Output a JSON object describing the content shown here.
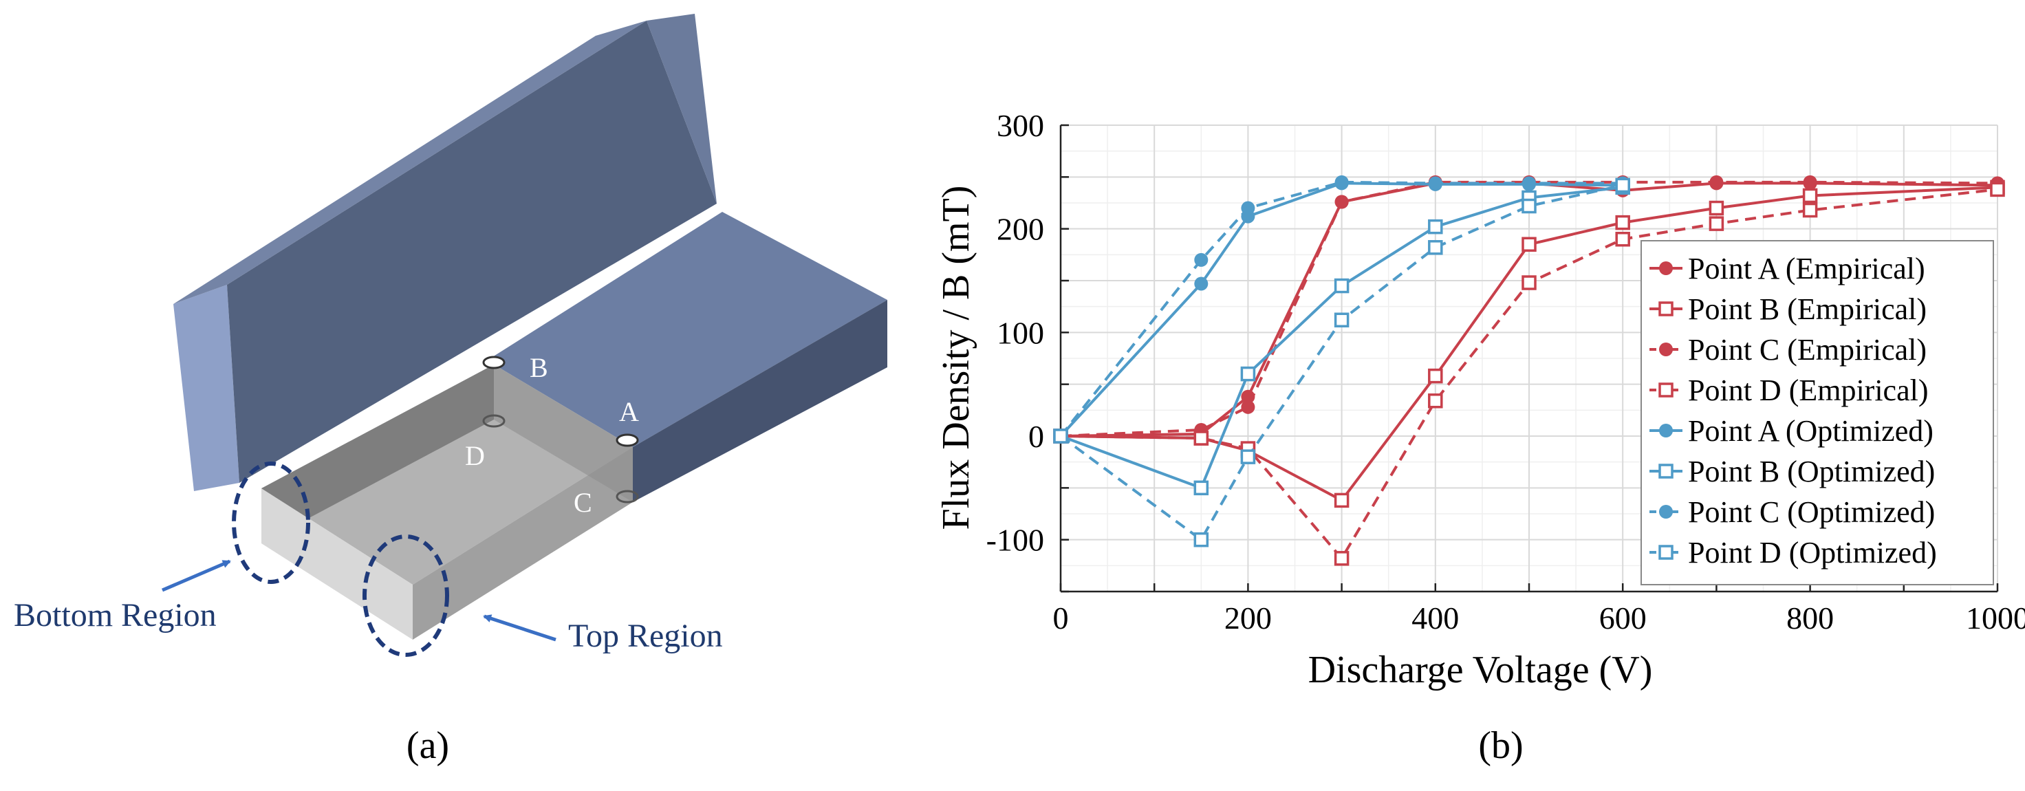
{
  "panel_a": {
    "caption": "(a)",
    "point_labels": {
      "a": "A",
      "b": "B",
      "c": "C",
      "d": "D"
    },
    "region_labels": {
      "bottom": "Bottom Region",
      "top": "Top Region"
    },
    "colors": {
      "block_top": "#58688a",
      "block_side": "#8ea0c8",
      "ring": "#1f3a7a",
      "arrow": "#3a6fc4"
    }
  },
  "panel_b": {
    "caption": "(b)"
  },
  "chart_data": {
    "type": "line",
    "title": "",
    "xlabel": "Discharge Voltage (V)",
    "ylabel": "Flux Density / B (mT)",
    "xlim": [
      0,
      1000
    ],
    "ylim": [
      -150,
      300
    ],
    "xticks": [
      0,
      200,
      400,
      600,
      800,
      1000
    ],
    "yticks": [
      -100,
      0,
      100,
      200,
      300
    ],
    "grid": true,
    "legend_position": "right",
    "series": [
      {
        "name": "Point A (Empirical)",
        "color": "#c8404b",
        "marker": "circle",
        "dash": "solid",
        "x": [
          0,
          150,
          200,
          300,
          400,
          500,
          600,
          700,
          800,
          1000
        ],
        "y": [
          0,
          2,
          38,
          226,
          244,
          244,
          237,
          244,
          244,
          242
        ]
      },
      {
        "name": "Point B (Empirical)",
        "color": "#c8404b",
        "marker": "square",
        "dash": "solid",
        "x": [
          0,
          150,
          200,
          300,
          400,
          500,
          600,
          700,
          800,
          1000
        ],
        "y": [
          0,
          -2,
          -14,
          -62,
          58,
          185,
          206,
          220,
          232,
          240
        ]
      },
      {
        "name": "Point C (Empirical)",
        "color": "#c8404b",
        "marker": "circle",
        "dash": "dashed",
        "x": [
          0,
          150,
          200,
          300,
          400,
          500,
          600,
          700,
          800,
          1000
        ],
        "y": [
          0,
          6,
          28,
          226,
          245,
          245,
          245,
          245,
          245,
          244
        ]
      },
      {
        "name": "Point D (Empirical)",
        "color": "#c8404b",
        "marker": "square",
        "dash": "dashed",
        "x": [
          0,
          150,
          200,
          300,
          400,
          500,
          600,
          700,
          800,
          1000
        ],
        "y": [
          0,
          -2,
          -12,
          -118,
          34,
          148,
          190,
          205,
          218,
          238
        ]
      },
      {
        "name": "Point A (Optimized)",
        "color": "#4f9bc8",
        "marker": "circle",
        "dash": "solid",
        "x": [
          0,
          150,
          200,
          300,
          400,
          500,
          600
        ],
        "y": [
          0,
          147,
          212,
          244,
          243,
          243,
          242
        ]
      },
      {
        "name": "Point B (Optimized)",
        "color": "#4f9bc8",
        "marker": "square",
        "dash": "solid",
        "x": [
          0,
          150,
          200,
          300,
          400,
          500,
          600
        ],
        "y": [
          0,
          -50,
          60,
          145,
          202,
          230,
          240
        ]
      },
      {
        "name": "Point C (Optimized)",
        "color": "#4f9bc8",
        "marker": "circle",
        "dash": "dashed",
        "x": [
          0,
          150,
          200,
          300,
          400,
          500,
          600
        ],
        "y": [
          0,
          170,
          220,
          245,
          244,
          244,
          244
        ]
      },
      {
        "name": "Point D (Optimized)",
        "color": "#4f9bc8",
        "marker": "square",
        "dash": "dashed",
        "x": [
          0,
          150,
          200,
          300,
          400,
          500,
          600
        ],
        "y": [
          0,
          -100,
          -20,
          112,
          182,
          222,
          242
        ]
      }
    ]
  }
}
